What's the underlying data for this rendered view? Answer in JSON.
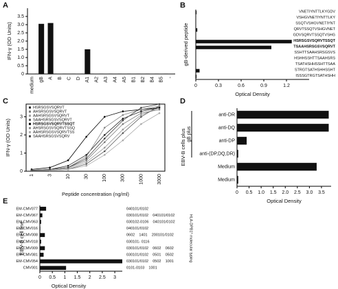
{
  "chart_data": [
    {
      "type": "bar",
      "panel": "A",
      "ylabel": "IFN-γ (OD Units)",
      "categories": [
        "medium",
        "gB",
        "A",
        "B",
        "C",
        "D",
        "A1",
        "A2",
        "A3",
        "A4",
        "A5",
        "B1",
        "B2",
        "B4",
        "B5",
        "-"
      ],
      "values": [
        0.02,
        3.05,
        3.1,
        0.02,
        0.01,
        0.02,
        1.5,
        0.02,
        0.02,
        0.02,
        0.02,
        0.02,
        0.02,
        0.02,
        0.02,
        0.02
      ],
      "color": "#111111",
      "ylim": [
        0,
        4
      ],
      "yticks": [
        0,
        0.5,
        {
          "value": 1,
          "label": "1.0"
        },
        1.5,
        {
          "value": 2,
          "label": "2.0"
        },
        2.5,
        {
          "value": 3,
          "label": "3.0"
        },
        3.5
      ]
    },
    {
      "type": "hbar",
      "panel": "B",
      "ylabel": "gB-derived peptide",
      "xlabel": "Optical Density",
      "categories": [
        "VNETIYNTTLKYGDV",
        "VSHGVNETIYNTTLKY",
        "SSQTVSHGVNETIYNT",
        "QRVTSSQTVSHGVNET",
        "GDVSQRVTSSQTVSHG",
        "HSRSGSVSQRVTSSQT",
        "TSAAHSRSGSVSQRVT",
        "SSHTTSAAHSRSGSVS",
        "HSHHSSHTTSAAHSRS",
        "TSATHSHHSSHTTSAA",
        "STRGTSATHSHHSSHT",
        "ISSSGTRGTSATHSHH"
      ],
      "values": [
        0.01,
        0,
        0,
        0.02,
        0,
        1.27,
        1.0,
        0,
        0,
        0,
        0.05,
        0.01
      ],
      "color": "#111111",
      "xlim": [
        0,
        1.5
      ],
      "xticks": [
        0,
        0.3,
        0.6,
        0.9,
        1.2
      ]
    },
    {
      "type": "line",
      "panel": "C",
      "ylabel": "IFN-γ (OD Units)",
      "xlabel": "Peptide concentration (ng/ml)",
      "categories": [
        "1",
        "3",
        "10",
        "30",
        "100",
        "300",
        "1000",
        "3000"
      ],
      "ylim": [
        0,
        3.7
      ],
      "yticks": [
        0,
        1,
        2,
        3
      ],
      "series": [
        {
          "name": "HSRSGSVSQRVT",
          "color": "#222222",
          "values": [
            0.05,
            0.1,
            0.3,
            0.9,
            2.0,
            2.9,
            3.3,
            3.5
          ]
        },
        {
          "name": "AHSRSGSVSQRVT",
          "color": "#777777",
          "values": [
            0.05,
            0.1,
            0.2,
            0.6,
            1.6,
            2.6,
            3.2,
            3.4
          ]
        },
        {
          "name": "AAHSRSGSVSQRVT",
          "color": "#999999",
          "values": [
            0.05,
            0.05,
            0.15,
            0.5,
            1.3,
            2.3,
            3.1,
            3.5
          ]
        },
        {
          "name": "SAAHSRSGSVSQRVT",
          "color": "#555555",
          "values": [
            0.05,
            0.05,
            0.1,
            0.4,
            1.1,
            2.1,
            3.0,
            3.6
          ]
        },
        {
          "name": "HSRSGSVSQRVTSSQT",
          "color": "#000000",
          "values": [
            0.1,
            0.2,
            0.6,
            1.9,
            3.0,
            3.3,
            3.4,
            3.5
          ]
        },
        {
          "name": "AHSRSGSVSQRVTSSQ",
          "color": "#888888",
          "values": [
            0.05,
            0.1,
            0.2,
            0.8,
            2.4,
            3.1,
            3.4,
            3.6
          ]
        },
        {
          "name": "AAHSRSGSVSQRVTSS",
          "color": "#aaaaaa",
          "values": [
            0.05,
            0.05,
            0.1,
            0.3,
            0.9,
            1.7,
            2.6,
            3.2
          ]
        },
        {
          "name": "SAAHSRSGSVSQRV",
          "color": "#444444",
          "values": [
            0.05,
            0.1,
            0.2,
            0.7,
            1.8,
            2.8,
            3.5,
            3.7
          ]
        }
      ]
    },
    {
      "type": "hbar",
      "panel": "D",
      "ylabel": "EBV-B cells plus",
      "group_label": "gB plus",
      "xlabel": "Optical Density",
      "categories": [
        "anti-DR",
        "anti-DQ",
        "anti-DP",
        "anti-(DP,DQ,DR)",
        "Medium",
        "Medium"
      ],
      "values": [
        3.8,
        3.8,
        0.4,
        0.05,
        3.3,
        0.05
      ],
      "color": "#111111",
      "xlim": [
        0,
        3.9
      ],
      "xticks": [
        0,
        0.5,
        {
          "value": 1,
          "label": "1.0"
        },
        1.5,
        {
          "value": 2,
          "label": "2.0"
        },
        2.5,
        {
          "value": 3,
          "label": "3.0"
        },
        3.5
      ]
    },
    {
      "type": "hbar",
      "panel": "E",
      "ylabel": "EBV-B cell line",
      "xlabel": "Optical Density",
      "typing_label": "HLA-DPB1* molecular typing",
      "categories": [
        "EM-CMV077",
        "EM-CMV067",
        "EM-CMV063",
        "EM-CMV016",
        "EM-CMV008",
        "EM-CMV018",
        "EM-CMV009",
        "EM-CMV081",
        "EM-CMV054",
        "CMV001"
      ],
      "typing": [
        "040101/0102",
        "030101/0102    040101/0102",
        "030102-0106    040101/0102",
        "040101/0102",
        "0602    1401    200101/0102",
        "030101- 0116",
        "030101/0102    0602    0602",
        "030101/0102    0501    0502",
        "030101/0102    0502    1001",
        "0101-0103    1001"
      ],
      "values": [
        0.25,
        0.1,
        0.05,
        0.02,
        0.2,
        0.05,
        0.2,
        0.15,
        3.3,
        1.05
      ],
      "color": "#111111",
      "xlim": [
        0,
        3.3
      ],
      "xticks": [
        0,
        0.5,
        1,
        1.5,
        2,
        2.5,
        3
      ]
    }
  ]
}
